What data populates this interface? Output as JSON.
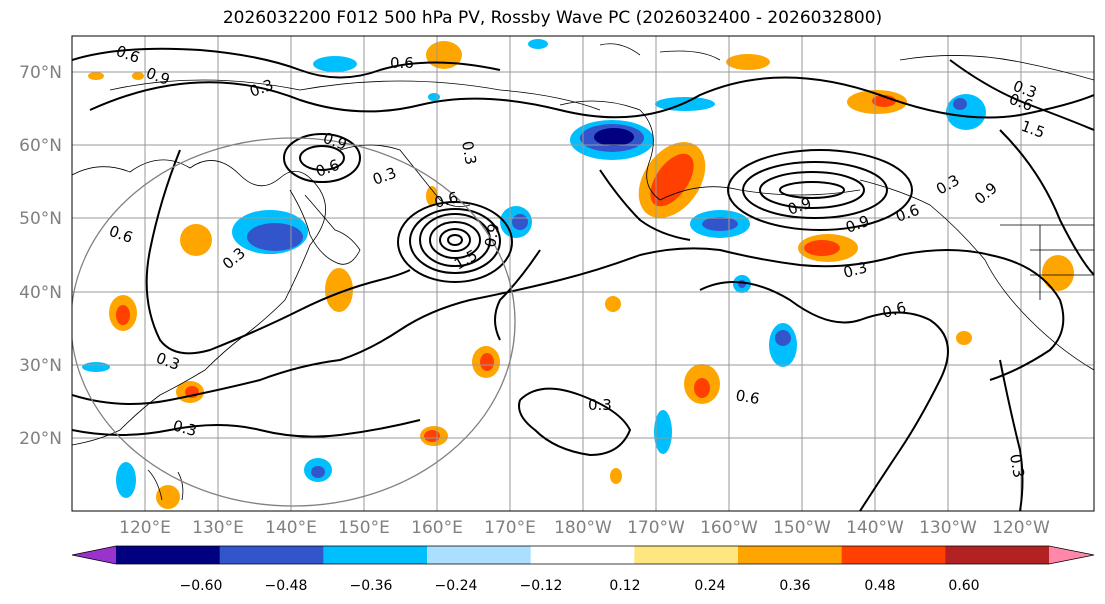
{
  "title": "2026032200 F012 500 hPa PV, Rossby Wave PC (2026032400 - 2026032800)",
  "map": {
    "lat_labels": [
      "70°N",
      "60°N",
      "50°N",
      "40°N",
      "30°N",
      "20°N"
    ],
    "lon_labels": [
      "120°E",
      "130°E",
      "140°E",
      "150°E",
      "160°E",
      "170°E",
      "180°W",
      "170°W",
      "160°W",
      "150°W",
      "140°W",
      "130°W",
      "120°W"
    ],
    "contour_labels": [
      "0.6",
      "0.9",
      "0.3",
      "0.6",
      "0.9",
      "0.3",
      "0.6",
      "1.5",
      "0.9",
      "0.3",
      "0.3",
      "0.6",
      "0.6",
      "1.5",
      "0.9",
      "0.6",
      "0.3",
      "0.6",
      "0.9",
      "0.3",
      "0.3",
      "0.6",
      "0.3",
      "0.3",
      "0.3",
      "0.6",
      "0.9",
      "0.3"
    ]
  },
  "colorbar": {
    "ticks": [
      "−0.60",
      "−0.48",
      "−0.36",
      "−0.24",
      "−0.12",
      "0.12",
      "0.24",
      "0.36",
      "0.48",
      "0.60"
    ],
    "colors": [
      "#9933cc",
      "#000080",
      "#3355cc",
      "#00bfff",
      "#aadfff",
      "#ffffff",
      "#ffe680",
      "#ffa500",
      "#ff4000",
      "#b22222",
      "#ff88aa"
    ]
  }
}
